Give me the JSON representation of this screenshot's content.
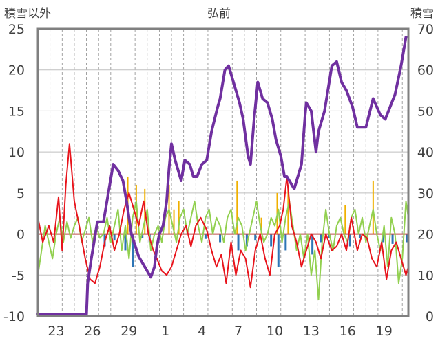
{
  "chart_data": {
    "type": "line",
    "title": "弘前",
    "left_axis_label": "積雪以外",
    "right_axis_label": "積雪",
    "y_left_range": [
      -10,
      25
    ],
    "y_left_ticks": [
      "25",
      "20",
      "15",
      "10",
      "5",
      "0",
      "-5",
      "-10"
    ],
    "y_right_range": [
      0,
      70
    ],
    "y_right_ticks": [
      "70",
      "60",
      "50",
      "40",
      "30",
      "20",
      "10",
      "0"
    ],
    "x_range_days": [
      0,
      30.5
    ],
    "x_ticks": [
      {
        "day": 1.5,
        "label": "23"
      },
      {
        "day": 4.5,
        "label": "26"
      },
      {
        "day": 7.5,
        "label": "29"
      },
      {
        "day": 10.5,
        "label": "1"
      },
      {
        "day": 13.5,
        "label": "4"
      },
      {
        "day": 16.5,
        "label": "7"
      },
      {
        "day": 19.5,
        "label": "10"
      },
      {
        "day": 22.5,
        "label": "13"
      },
      {
        "day": 25.5,
        "label": "16"
      },
      {
        "day": 28.5,
        "label": "19"
      }
    ],
    "grid": true,
    "colors": {
      "temperature": "#e8141c",
      "snow_depth": "#7030a0",
      "sunshine_wind": "#92d050",
      "precipitation": "#2e75b6",
      "snowfall": "#f0b000",
      "frame": "#808080",
      "zero_line": "#c0504d"
    },
    "series": [
      {
        "key": "snow_depth",
        "axis": "right",
        "points": [
          [
            0,
            0.5
          ],
          [
            0.3,
            0.5
          ],
          [
            3.2,
            0.5
          ],
          [
            4.0,
            0.5
          ],
          [
            4.1,
            8
          ],
          [
            4.4,
            14
          ],
          [
            4.9,
            23
          ],
          [
            5.4,
            23
          ],
          [
            5.8,
            30
          ],
          [
            6.2,
            37
          ],
          [
            6.6,
            35.5
          ],
          [
            7.0,
            33
          ],
          [
            7.3,
            28
          ],
          [
            7.7,
            20
          ],
          [
            8.3,
            14.5
          ],
          [
            8.8,
            12
          ],
          [
            9.3,
            9.5
          ],
          [
            9.6,
            12
          ],
          [
            9.8,
            17
          ],
          [
            10.0,
            20
          ],
          [
            10.3,
            22
          ],
          [
            10.6,
            28
          ],
          [
            10.8,
            36
          ],
          [
            11.0,
            42
          ],
          [
            11.3,
            38
          ],
          [
            11.8,
            33
          ],
          [
            12.1,
            38
          ],
          [
            12.5,
            37
          ],
          [
            12.8,
            34
          ],
          [
            13.1,
            34
          ],
          [
            13.5,
            37
          ],
          [
            13.9,
            38
          ],
          [
            14.3,
            45
          ],
          [
            14.8,
            51
          ],
          [
            15.0,
            53
          ],
          [
            15.4,
            60
          ],
          [
            15.7,
            61
          ],
          [
            16.2,
            56
          ],
          [
            16.6,
            52
          ],
          [
            16.9,
            48
          ],
          [
            17.3,
            39
          ],
          [
            17.5,
            37
          ],
          [
            17.8,
            48
          ],
          [
            18.1,
            57
          ],
          [
            18.5,
            53
          ],
          [
            18.9,
            52
          ],
          [
            19.3,
            48
          ],
          [
            19.6,
            43
          ],
          [
            20.0,
            39
          ],
          [
            20.3,
            34
          ],
          [
            20.5,
            34
          ],
          [
            21.1,
            31
          ],
          [
            21.7,
            37
          ],
          [
            22.0,
            49
          ],
          [
            22.1,
            52
          ],
          [
            22.5,
            50
          ],
          [
            22.9,
            40
          ],
          [
            23.1,
            45
          ],
          [
            23.6,
            50
          ],
          [
            24.2,
            61
          ],
          [
            24.6,
            62
          ],
          [
            25.0,
            57
          ],
          [
            25.4,
            55
          ],
          [
            25.9,
            51
          ],
          [
            26.3,
            46
          ],
          [
            27.0,
            46
          ],
          [
            27.6,
            53
          ],
          [
            28.2,
            49
          ],
          [
            28.6,
            48
          ],
          [
            29.0,
            51
          ],
          [
            29.4,
            54
          ],
          [
            29.9,
            61
          ],
          [
            30.3,
            68
          ]
        ]
      },
      {
        "key": "temperature",
        "axis": "left",
        "points": [
          [
            0,
            2
          ],
          [
            0.4,
            -1
          ],
          [
            0.9,
            1
          ],
          [
            1.3,
            -1
          ],
          [
            1.7,
            4.5
          ],
          [
            2.0,
            -2
          ],
          [
            2.3,
            6
          ],
          [
            2.6,
            11
          ],
          [
            3.0,
            4
          ],
          [
            3.4,
            1
          ],
          [
            3.9,
            -3
          ],
          [
            4.3,
            -5.5
          ],
          [
            4.7,
            -6
          ],
          [
            5.1,
            -4
          ],
          [
            5.5,
            -1
          ],
          [
            5.9,
            1
          ],
          [
            6.3,
            -2
          ],
          [
            6.7,
            0
          ],
          [
            7.1,
            3
          ],
          [
            7.5,
            5
          ],
          [
            7.9,
            3
          ],
          [
            8.3,
            1
          ],
          [
            8.7,
            4
          ],
          [
            9.1,
            0
          ],
          [
            9.5,
            -2
          ],
          [
            9.8,
            -3
          ],
          [
            10.2,
            -4.5
          ],
          [
            10.6,
            -5
          ],
          [
            11.0,
            -4
          ],
          [
            11.4,
            -2
          ],
          [
            11.8,
            0
          ],
          [
            12.2,
            1
          ],
          [
            12.6,
            -1.5
          ],
          [
            13.0,
            1
          ],
          [
            13.4,
            2
          ],
          [
            13.9,
            0.5
          ],
          [
            14.3,
            -2
          ],
          [
            14.7,
            -4
          ],
          [
            15.1,
            -2.5
          ],
          [
            15.5,
            -6
          ],
          [
            15.9,
            -1
          ],
          [
            16.3,
            -5
          ],
          [
            16.7,
            -2
          ],
          [
            17.1,
            -3
          ],
          [
            17.5,
            -6.5
          ],
          [
            17.9,
            -2
          ],
          [
            18.3,
            0
          ],
          [
            18.7,
            -3
          ],
          [
            19.1,
            -5
          ],
          [
            19.5,
            0
          ],
          [
            19.9,
            1
          ],
          [
            20.2,
            3
          ],
          [
            20.5,
            7
          ],
          [
            20.9,
            1
          ],
          [
            21.3,
            -1
          ],
          [
            21.7,
            -4
          ],
          [
            22.1,
            -2
          ],
          [
            22.5,
            0
          ],
          [
            22.9,
            -1
          ],
          [
            23.3,
            -3
          ],
          [
            23.7,
            0
          ],
          [
            24.2,
            -2
          ],
          [
            24.6,
            -1.5
          ],
          [
            25.0,
            0
          ],
          [
            25.4,
            -2
          ],
          [
            25.8,
            2
          ],
          [
            26.3,
            -2
          ],
          [
            26.7,
            0
          ],
          [
            27.1,
            -0.5
          ],
          [
            27.5,
            -3
          ],
          [
            27.9,
            -4
          ],
          [
            28.3,
            -1
          ],
          [
            28.7,
            -5.5
          ],
          [
            29.1,
            -2
          ],
          [
            29.5,
            -1
          ],
          [
            29.9,
            -3
          ],
          [
            30.3,
            -5
          ],
          [
            30.5,
            -4
          ]
        ]
      },
      {
        "key": "sunshine_wind",
        "axis": "left",
        "points": [
          [
            0,
            -5
          ],
          [
            0.3,
            -2
          ],
          [
            0.6,
            1
          ],
          [
            0.9,
            -1
          ],
          [
            1.2,
            -3
          ],
          [
            1.5,
            0
          ],
          [
            1.8,
            2
          ],
          [
            2.1,
            -1
          ],
          [
            2.4,
            1.5
          ],
          [
            2.7,
            -0.5
          ],
          [
            3.0,
            1
          ],
          [
            3.3,
            2
          ],
          [
            3.6,
            -1
          ],
          [
            3.9,
            0.5
          ],
          [
            4.2,
            2
          ],
          [
            4.5,
            -1
          ],
          [
            4.8,
            1
          ],
          [
            5.1,
            -0.5
          ],
          [
            5.4,
            0
          ],
          [
            5.7,
            2
          ],
          [
            6.0,
            -1
          ],
          [
            6.3,
            1
          ],
          [
            6.6,
            3
          ],
          [
            6.9,
            -2
          ],
          [
            7.2,
            1
          ],
          [
            7.5,
            -3
          ],
          [
            7.8,
            2
          ],
          [
            8.1,
            4
          ],
          [
            8.4,
            -1
          ],
          [
            8.7,
            1
          ],
          [
            9.0,
            3
          ],
          [
            9.3,
            -2
          ],
          [
            9.6,
            0
          ],
          [
            9.9,
            1
          ],
          [
            10.2,
            -1
          ],
          [
            10.5,
            2
          ],
          [
            10.8,
            3
          ],
          [
            11.1,
            1
          ],
          [
            11.4,
            -1
          ],
          [
            11.7,
            2
          ],
          [
            12.0,
            3
          ],
          [
            12.3,
            0
          ],
          [
            12.6,
            2
          ],
          [
            12.9,
            4
          ],
          [
            13.2,
            1
          ],
          [
            13.5,
            -1
          ],
          [
            13.8,
            2
          ],
          [
            14.1,
            3
          ],
          [
            14.4,
            0
          ],
          [
            14.7,
            2
          ],
          [
            15.0,
            1
          ],
          [
            15.3,
            -1
          ],
          [
            15.6,
            2
          ],
          [
            15.9,
            3
          ],
          [
            16.2,
            0
          ],
          [
            16.5,
            2
          ],
          [
            16.8,
            1
          ],
          [
            17.1,
            -2
          ],
          [
            17.4,
            0
          ],
          [
            17.7,
            2
          ],
          [
            18.0,
            4
          ],
          [
            18.3,
            1
          ],
          [
            18.6,
            -1
          ],
          [
            18.9,
            0
          ],
          [
            19.2,
            2
          ],
          [
            19.5,
            1
          ],
          [
            19.8,
            3
          ],
          [
            20.1,
            -1
          ],
          [
            20.4,
            2
          ],
          [
            20.7,
            4
          ],
          [
            21.0,
            1
          ],
          [
            21.3,
            -2
          ],
          [
            21.6,
            0
          ],
          [
            21.9,
            -3
          ],
          [
            22.2,
            0
          ],
          [
            22.5,
            -5
          ],
          [
            22.8,
            -2
          ],
          [
            23.1,
            -8
          ],
          [
            23.4,
            -1
          ],
          [
            23.7,
            3
          ],
          [
            24.0,
            0
          ],
          [
            24.3,
            -2
          ],
          [
            24.6,
            1
          ],
          [
            24.9,
            2
          ],
          [
            25.2,
            0
          ],
          [
            25.5,
            -1
          ],
          [
            25.8,
            2
          ],
          [
            26.1,
            3
          ],
          [
            26.4,
            0
          ],
          [
            26.7,
            2
          ],
          [
            27.0,
            -1
          ],
          [
            27.3,
            1
          ],
          [
            27.6,
            3
          ],
          [
            27.9,
            0
          ],
          [
            28.2,
            -2
          ],
          [
            28.5,
            1
          ],
          [
            28.8,
            -4
          ],
          [
            29.1,
            2
          ],
          [
            29.4,
            0
          ],
          [
            29.7,
            -6
          ],
          [
            30.0,
            -3
          ],
          [
            30.3,
            4
          ],
          [
            30.5,
            2
          ]
        ]
      }
    ],
    "bars_precipitation": [
      [
        5.5,
        -1.5
      ],
      [
        6.3,
        -0.8
      ],
      [
        7.2,
        -2
      ],
      [
        7.8,
        -4
      ],
      [
        8.6,
        -0.5
      ],
      [
        9.2,
        -1
      ],
      [
        10.0,
        -0.5
      ],
      [
        13.8,
        -0.6
      ],
      [
        15.0,
        -1
      ],
      [
        16.5,
        -2
      ],
      [
        17.2,
        -1.5
      ],
      [
        17.9,
        -0.8
      ],
      [
        19.2,
        -1.5
      ],
      [
        19.8,
        -4
      ],
      [
        20.4,
        -2
      ],
      [
        22.6,
        -2.5
      ],
      [
        23.3,
        -1
      ],
      [
        24.0,
        -0.5
      ],
      [
        25.7,
        -1.5
      ],
      [
        26.5,
        -0.5
      ],
      [
        28.4,
        -1
      ],
      [
        29.2,
        -1.2
      ],
      [
        30.4,
        -1
      ]
    ],
    "bars_snowfall": [
      [
        7.4,
        7
      ],
      [
        8.1,
        6
      ],
      [
        8.8,
        5.5
      ],
      [
        10.8,
        6
      ],
      [
        11.2,
        3
      ],
      [
        11.6,
        4
      ],
      [
        16.4,
        6.5
      ],
      [
        18.4,
        2
      ],
      [
        19.7,
        5
      ],
      [
        20.6,
        6
      ],
      [
        25.3,
        3.5
      ],
      [
        27.6,
        6.5
      ]
    ]
  }
}
